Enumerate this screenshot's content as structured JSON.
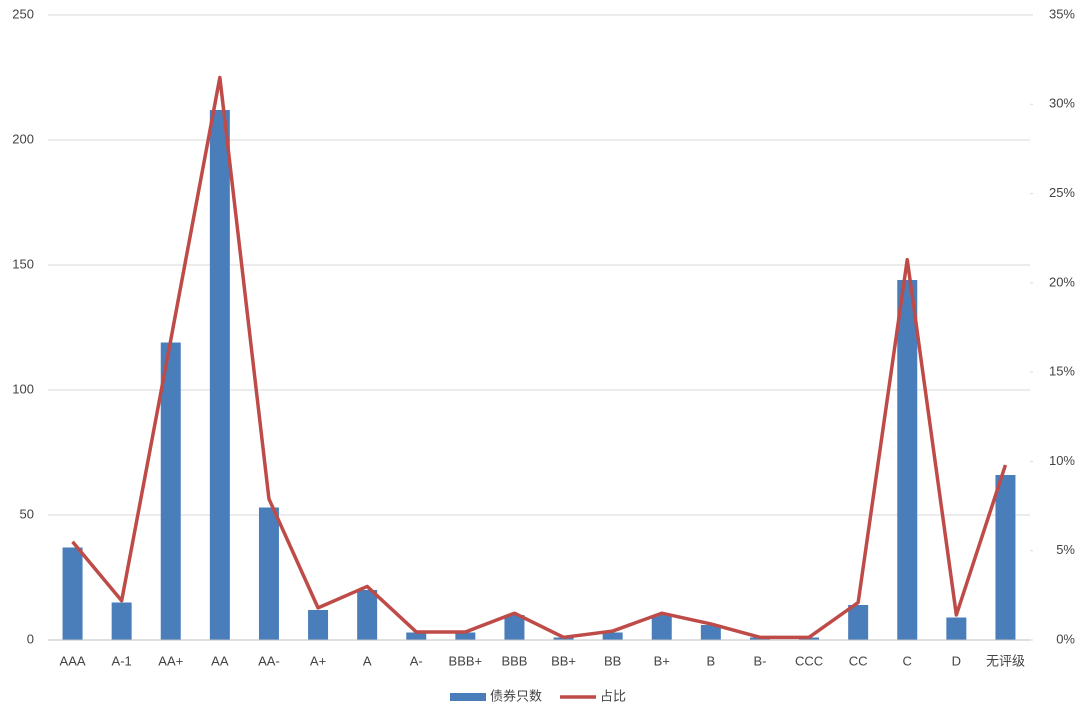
{
  "chart_data": {
    "type": "bar_line",
    "categories": [
      "AAA",
      "A-1",
      "AA+",
      "AA",
      "AA-",
      "A+",
      "A",
      "A-",
      "BBB+",
      "BBB",
      "BB+",
      "BB",
      "B+",
      "B",
      "B-",
      "CCC",
      "CC",
      "C",
      "D",
      "无评级"
    ],
    "series": [
      {
        "name": "债券只数",
        "type": "bar",
        "color": "#4a7ebb",
        "values": [
          37,
          15,
          119,
          212,
          53,
          12,
          20,
          3,
          3,
          10,
          1,
          3,
          10,
          6,
          1,
          1,
          14,
          144,
          9,
          66
        ]
      },
      {
        "name": "占比",
        "type": "line",
        "axis": "y2",
        "color": "#be4b48",
        "values": [
          5.5,
          2.2,
          16.8,
          31.5,
          7.9,
          1.8,
          3.0,
          0.45,
          0.45,
          1.5,
          0.15,
          0.5,
          1.5,
          0.9,
          0.15,
          0.15,
          2.1,
          21.3,
          1.4,
          9.8
        ]
      }
    ],
    "ylim": [
      0,
      250
    ],
    "yticks": [
      0,
      50,
      100,
      150,
      200,
      250
    ],
    "y2lim": [
      0,
      35
    ],
    "y2ticks": [
      {
        "value": 0,
        "label": "0%"
      },
      {
        "value": 5,
        "label": "5%"
      },
      {
        "value": 10,
        "label": "10%"
      },
      {
        "value": 15,
        "label": "15%"
      },
      {
        "value": 20,
        "label": "20%"
      },
      {
        "value": 25,
        "label": "25%"
      },
      {
        "value": 30,
        "label": "30%"
      },
      {
        "value": 35,
        "label": "35%"
      }
    ],
    "grid": true,
    "legend": "bottom"
  }
}
